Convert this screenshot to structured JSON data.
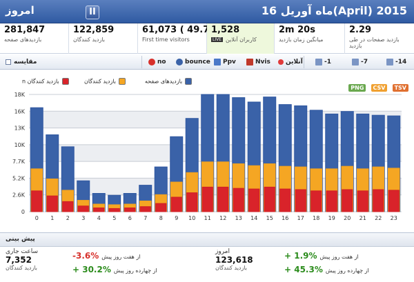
{
  "header": {
    "title": "2015 (April)ماه آوریل 16",
    "today_label": "امروز",
    "pause_glyph": "II"
  },
  "stats": [
    {
      "value": "281,847",
      "label": "بازدیدهای صفحه"
    },
    {
      "value": "122,859",
      "label": "بازدید کنندگان"
    },
    {
      "value": "61,073 ( 49.7 % )",
      "label": "First time visitors"
    },
    {
      "value": "1,528",
      "label": "کاربران آنلاین",
      "badge": "LIVE"
    },
    {
      "value": "2m 20s",
      "label": "میانگین زمان بازدید"
    },
    {
      "value": "2.29",
      "label": "بازدید صفحات در طی بازدید"
    }
  ],
  "toolbar": {
    "compare_label": "مقایسه",
    "buttons": [
      {
        "label": "no",
        "icon": "no-icon"
      },
      {
        "label": "bounce",
        "icon": "bounce-icon"
      },
      {
        "label": "Ppv",
        "icon": "ppv-icon"
      },
      {
        "label": "Nvis",
        "icon": "nvis-icon"
      },
      {
        "label": "آنلاین",
        "icon": "online-icon"
      },
      {
        "label": "-1",
        "icon": "calendar-icon"
      },
      {
        "label": "-7",
        "icon": "calendar-icon"
      },
      {
        "label": "-14",
        "icon": "calendar-icon"
      }
    ]
  },
  "legend": [
    {
      "label": "بازدید کنندگان n",
      "color": "#d9232a"
    },
    {
      "label": "بازدید کنندگان",
      "color": "#f5a623"
    },
    {
      "label": "بازدیدهای صفحه",
      "color": "#3a62a8"
    }
  ],
  "exports": [
    {
      "label": "PNG",
      "color": "#6aa84f"
    },
    {
      "label": "CSV",
      "color": "#f0a030"
    },
    {
      "label": "TSV",
      "color": "#e07030"
    }
  ],
  "chart_data": {
    "type": "bar",
    "categories": [
      "0",
      "1",
      "2",
      "3",
      "4",
      "5",
      "6",
      "7",
      "8",
      "9",
      "10",
      "11",
      "12",
      "13",
      "14",
      "15",
      "16",
      "17",
      "18",
      "19",
      "20",
      "21",
      "22",
      "23"
    ],
    "series": [
      {
        "name": "بازدیدهای صفحه",
        "color": "#3a62a8",
        "values": [
          16500,
          12200,
          10300,
          4900,
          2900,
          2600,
          2900,
          4200,
          7100,
          11900,
          14800,
          18600,
          18600,
          18100,
          17400,
          18200,
          17000,
          16800,
          16100,
          15500,
          15900,
          15500,
          15300,
          15200
        ]
      },
      {
        "name": "بازدید کنندگان",
        "color": "#f5a623",
        "values": [
          6800,
          5200,
          3400,
          1800,
          1200,
          1100,
          1200,
          1700,
          2700,
          4700,
          6200,
          7900,
          7900,
          7600,
          7300,
          7600,
          7200,
          7100,
          6800,
          6800,
          7200,
          6800,
          7100,
          6900
        ]
      },
      {
        "name": "بازدید کنندگان n",
        "color": "#d9232a",
        "values": [
          3300,
          2500,
          1600,
          900,
          600,
          500,
          600,
          800,
          1300,
          2300,
          3000,
          3900,
          3900,
          3700,
          3600,
          3900,
          3600,
          3500,
          3300,
          3300,
          3500,
          3300,
          3500,
          3400
        ]
      }
    ],
    "y_ticks": [
      "0",
      "2.6K",
      "5.2K",
      "7.7K",
      "10K",
      "13K",
      "16K",
      "18K"
    ],
    "ylim": [
      0,
      18600
    ]
  },
  "forecast": {
    "title": "پیش بینی",
    "left": {
      "top_label": "ساعت جاری",
      "value": "7,352",
      "sub": "بازدید کنندگان"
    },
    "left_changes": [
      {
        "pct": "-3.6%",
        "desc": "از هفت روز پیش",
        "sign": "neg"
      },
      {
        "pct": "+ 30.2%",
        "desc": "از چهارده روز پیش",
        "sign": "pos"
      }
    ],
    "right": {
      "top_label": "امروز",
      "value": "123,618",
      "sub": "بازدید کنندگان"
    },
    "right_changes": [
      {
        "pct": "+ 1.9%",
        "desc": "از هفت روز پیش",
        "sign": "pos"
      },
      {
        "pct": "+ 45.3%",
        "desc": "از چهارده روز پیش",
        "sign": "pos"
      }
    ]
  }
}
